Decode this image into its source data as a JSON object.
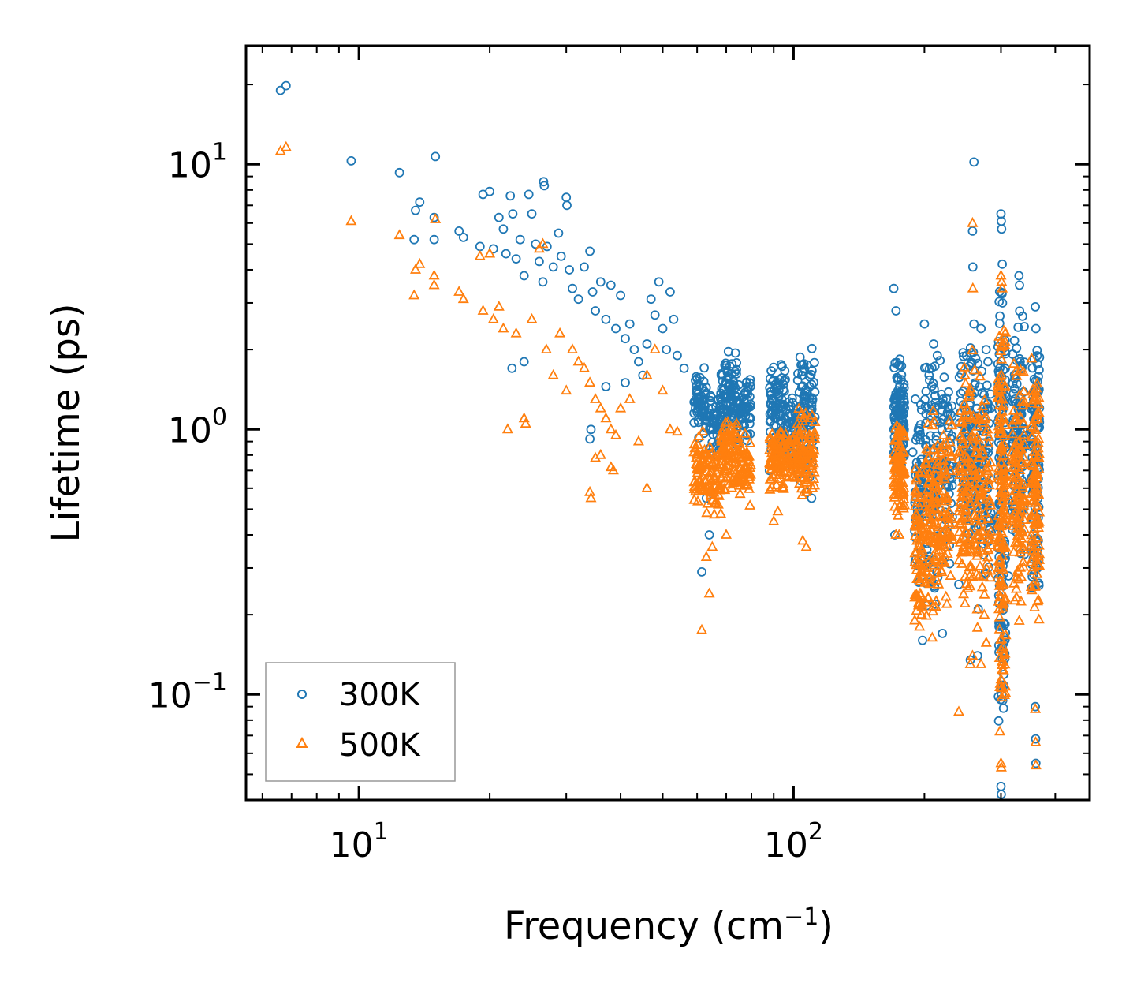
{
  "chart_data": {
    "type": "scatter",
    "xscale": "log",
    "yscale": "log",
    "xlim": [
      5.5,
      480
    ],
    "ylim": [
      0.04,
      28
    ],
    "xlabel": "Frequency (cm",
    "xlabel_sup": "−1",
    "xlabel_tail": ")",
    "ylabel": "Lifetime (ps)",
    "x_ticks": [
      {
        "value": 10,
        "base": "10",
        "exp": "1"
      },
      {
        "value": 100,
        "base": "10",
        "exp": "2"
      }
    ],
    "y_ticks": [
      {
        "value": 0.1,
        "base": "10",
        "exp": "−1"
      },
      {
        "value": 1,
        "base": "10",
        "exp": "0"
      },
      {
        "value": 10,
        "base": "10",
        "exp": "1"
      }
    ],
    "legend_position": "lower-left",
    "series": [
      {
        "name": "300K",
        "marker": "circle",
        "color": "#1f77b4",
        "points": [
          [
            6.6,
            19.0
          ],
          [
            6.8,
            19.8
          ],
          [
            9.6,
            10.3
          ],
          [
            12.4,
            9.3
          ],
          [
            13.5,
            6.7
          ],
          [
            13.8,
            7.2
          ],
          [
            13.4,
            5.2
          ],
          [
            15.0,
            10.7
          ],
          [
            14.9,
            6.3
          ],
          [
            14.9,
            5.2
          ],
          [
            17.0,
            5.6
          ],
          [
            17.4,
            5.3
          ],
          [
            19.0,
            4.9
          ],
          [
            19.3,
            7.7
          ],
          [
            20.0,
            7.9
          ],
          [
            20.4,
            4.8
          ],
          [
            21.0,
            6.3
          ],
          [
            21.5,
            5.7
          ],
          [
            21.8,
            4.6
          ],
          [
            22.3,
            7.6
          ],
          [
            22.6,
            6.5
          ],
          [
            23.0,
            4.4
          ],
          [
            23.5,
            5.2
          ],
          [
            24.0,
            3.8
          ],
          [
            24.6,
            7.7
          ],
          [
            25.0,
            6.5
          ],
          [
            25.5,
            5.0
          ],
          [
            26.0,
            4.3
          ],
          [
            26.5,
            3.6
          ],
          [
            26.6,
            8.6
          ],
          [
            26.7,
            8.3
          ],
          [
            27.1,
            4.9
          ],
          [
            28.0,
            4.1
          ],
          [
            28.8,
            5.5
          ],
          [
            29.2,
            4.5
          ],
          [
            30.0,
            7.5
          ],
          [
            30.1,
            7.0
          ],
          [
            30.5,
            4.0
          ],
          [
            31.0,
            3.4
          ],
          [
            32.0,
            3.1
          ],
          [
            33.0,
            4.1
          ],
          [
            34.0,
            4.7
          ],
          [
            34.5,
            3.3
          ],
          [
            35.0,
            2.8
          ],
          [
            36.0,
            3.6
          ],
          [
            37.0,
            2.6
          ],
          [
            38.0,
            3.5
          ],
          [
            39.0,
            2.4
          ],
          [
            40.0,
            3.2
          ],
          [
            41.0,
            2.2
          ],
          [
            42.0,
            2.5
          ],
          [
            43.0,
            2.0
          ],
          [
            44.0,
            1.8
          ],
          [
            45.0,
            1.6
          ],
          [
            46.0,
            2.1
          ],
          [
            47.0,
            3.1
          ],
          [
            48.0,
            2.7
          ],
          [
            49.0,
            3.6
          ],
          [
            50.0,
            2.4
          ],
          [
            51.0,
            2.0
          ],
          [
            52.0,
            3.3
          ],
          [
            53.0,
            2.6
          ],
          [
            54.0,
            1.9
          ],
          [
            56.0,
            1.7
          ],
          [
            22.5,
            1.7
          ],
          [
            24.0,
            1.8
          ],
          [
            34.0,
            0.92
          ],
          [
            34.2,
            1.0
          ],
          [
            37.0,
            1.45
          ],
          [
            41.0,
            1.5
          ],
          [
            61.5,
            0.29
          ],
          [
            64.0,
            0.4
          ],
          [
            63.0,
            0.55
          ],
          [
            260.0,
            10.2
          ],
          [
            258.0,
            5.6
          ],
          [
            258.5,
            4.1
          ],
          [
            170.0,
            3.4
          ],
          [
            172.0,
            2.8
          ],
          [
            200.0,
            2.5
          ],
          [
            205.0,
            1.6
          ],
          [
            210.0,
            2.1
          ],
          [
            260.0,
            2.5
          ],
          [
            270.0,
            2.4
          ],
          [
            280.0,
            1.8
          ],
          [
            300.0,
            6.5
          ],
          [
            300.5,
            6.1
          ],
          [
            301.0,
            5.7
          ],
          [
            302.0,
            4.2
          ],
          [
            330.0,
            3.8
          ],
          [
            331.0,
            3.5
          ],
          [
            360.0,
            2.9
          ],
          [
            361.0,
            2.4
          ],
          [
            300.0,
            0.045
          ],
          [
            300.5,
            0.042
          ],
          [
            360.0,
            0.09
          ],
          [
            360.5,
            0.068
          ],
          [
            361.0,
            0.055
          ],
          [
            255.0,
            0.135
          ],
          [
            265.0,
            0.14
          ],
          [
            220.0,
            0.17
          ],
          [
            198.0,
            0.16
          ],
          [
            240.0,
            0.26
          ],
          [
            305.0,
            0.36
          ],
          [
            312.0,
            0.28
          ],
          [
            266.0,
            0.21
          ],
          [
            290.0,
            0.45
          ],
          [
            171.0,
            0.4
          ],
          [
            188.0,
            0.82
          ],
          [
            192.0,
            0.75
          ],
          [
            107.0,
            0.58
          ],
          [
            110.0,
            0.55
          ],
          [
            88.0,
            0.7
          ]
        ],
        "bands": [
          {
            "x": [
              59,
              63
            ],
            "y": [
              0.85,
              1.85
            ],
            "n": 60
          },
          {
            "x": [
              63,
              68
            ],
            "y": [
              0.75,
              1.5
            ],
            "n": 55
          },
          {
            "x": [
              68,
              74
            ],
            "y": [
              0.9,
              2.0
            ],
            "n": 90
          },
          {
            "x": [
              74,
              80
            ],
            "y": [
              0.85,
              1.7
            ],
            "n": 60
          },
          {
            "x": [
              88,
              96
            ],
            "y": [
              0.75,
              1.9
            ],
            "n": 85
          },
          {
            "x": [
              96,
              102
            ],
            "y": [
              0.7,
              1.4
            ],
            "n": 45
          },
          {
            "x": [
              102,
              112
            ],
            "y": [
              0.6,
              2.15
            ],
            "n": 100
          },
          {
            "x": [
              170,
              180
            ],
            "y": [
              0.65,
              2.0
            ],
            "n": 110
          },
          {
            "x": [
              190,
              198
            ],
            "y": [
              0.25,
              1.5
            ],
            "n": 60
          },
          {
            "x": [
              200,
              215
            ],
            "y": [
              0.2,
              2.3
            ],
            "n": 90
          },
          {
            "x": [
              215,
              232
            ],
            "y": [
              0.25,
              1.9
            ],
            "n": 75
          },
          {
            "x": [
              240,
              262
            ],
            "y": [
              0.3,
              2.2
            ],
            "n": 110
          },
          {
            "x": [
              262,
              285
            ],
            "y": [
              0.25,
              2.4
            ],
            "n": 90
          },
          {
            "x": [
              295,
              308
            ],
            "y": [
              0.06,
              4.3
            ],
            "n": 150
          },
          {
            "x": [
              318,
              340
            ],
            "y": [
              0.3,
              3.1
            ],
            "n": 120
          },
          {
            "x": [
              352,
              368
            ],
            "y": [
              0.2,
              2.6
            ],
            "n": 110
          }
        ]
      },
      {
        "name": "500K",
        "marker": "triangle",
        "color": "#ff7f0e",
        "points": [
          [
            6.6,
            11.2
          ],
          [
            6.8,
            11.6
          ],
          [
            9.6,
            6.1
          ],
          [
            12.4,
            5.4
          ],
          [
            13.5,
            4.0
          ],
          [
            13.8,
            4.2
          ],
          [
            13.4,
            3.2
          ],
          [
            15.0,
            6.2
          ],
          [
            14.9,
            3.8
          ],
          [
            14.9,
            3.5
          ],
          [
            17.0,
            3.3
          ],
          [
            17.4,
            3.1
          ],
          [
            19.0,
            4.5
          ],
          [
            19.3,
            2.8
          ],
          [
            20.0,
            4.6
          ],
          [
            20.4,
            2.6
          ],
          [
            21.0,
            2.9
          ],
          [
            21.5,
            2.4
          ],
          [
            22.0,
            1.0
          ],
          [
            23.0,
            2.3
          ],
          [
            24.0,
            1.1
          ],
          [
            24.2,
            1.05
          ],
          [
            25.0,
            2.6
          ],
          [
            26.0,
            4.8
          ],
          [
            26.5,
            5.0
          ],
          [
            27.0,
            2.0
          ],
          [
            28.0,
            1.6
          ],
          [
            29.0,
            2.3
          ],
          [
            30.0,
            1.4
          ],
          [
            31.0,
            2.0
          ],
          [
            32.0,
            1.8
          ],
          [
            33.0,
            1.7
          ],
          [
            34.0,
            1.5
          ],
          [
            35.0,
            1.3
          ],
          [
            36.0,
            1.2
          ],
          [
            37.0,
            1.1
          ],
          [
            38.0,
            1.0
          ],
          [
            39.0,
            0.95
          ],
          [
            40.0,
            1.2
          ],
          [
            42.0,
            1.3
          ],
          [
            44.0,
            0.9
          ],
          [
            46.0,
            1.6
          ],
          [
            48.0,
            2.0
          ],
          [
            50.0,
            1.4
          ],
          [
            52.0,
            1.0
          ],
          [
            54.0,
            0.98
          ],
          [
            34.0,
            0.58
          ],
          [
            34.2,
            0.55
          ],
          [
            38.0,
            0.72
          ],
          [
            38.5,
            0.7
          ],
          [
            46.0,
            0.6
          ],
          [
            35.0,
            0.78
          ],
          [
            36.0,
            0.8
          ],
          [
            61.5,
            0.175
          ],
          [
            64.0,
            0.24
          ],
          [
            63.0,
            0.33
          ],
          [
            65.0,
            0.36
          ],
          [
            70.0,
            0.4
          ],
          [
            68.0,
            0.48
          ],
          [
            90.0,
            0.45
          ],
          [
            92.0,
            0.49
          ],
          [
            105.0,
            0.38
          ],
          [
            107.0,
            0.36
          ],
          [
            258.0,
            6.0
          ],
          [
            258.5,
            3.4
          ],
          [
            172.0,
            0.4
          ],
          [
            175.0,
            0.4
          ],
          [
            300.0,
            3.8
          ],
          [
            301.0,
            3.6
          ],
          [
            302.0,
            3.4
          ],
          [
            360.0,
            0.088
          ],
          [
            360.5,
            0.066
          ],
          [
            361.0,
            0.054
          ],
          [
            300.0,
            0.055
          ],
          [
            300.5,
            0.053
          ],
          [
            240.0,
            0.086
          ],
          [
            255.0,
            0.13
          ],
          [
            258.0,
            0.14
          ],
          [
            270.0,
            0.13
          ],
          [
            190.0,
            0.19
          ],
          [
            195.0,
            0.18
          ]
        ],
        "bands": [
          {
            "x": [
              59,
              63
            ],
            "y": [
              0.5,
              1.05
            ],
            "n": 55
          },
          {
            "x": [
              63,
              68
            ],
            "y": [
              0.45,
              0.9
            ],
            "n": 50
          },
          {
            "x": [
              68,
              74
            ],
            "y": [
              0.55,
              1.15
            ],
            "n": 85
          },
          {
            "x": [
              74,
              80
            ],
            "y": [
              0.5,
              1.0
            ],
            "n": 55
          },
          {
            "x": [
              88,
              96
            ],
            "y": [
              0.55,
              1.1
            ],
            "n": 80
          },
          {
            "x": [
              96,
              102
            ],
            "y": [
              0.6,
              1.0
            ],
            "n": 40
          },
          {
            "x": [
              102,
              112
            ],
            "y": [
              0.52,
              1.25
            ],
            "n": 95
          },
          {
            "x": [
              170,
              180
            ],
            "y": [
              0.45,
              1.05
            ],
            "n": 100
          },
          {
            "x": [
              190,
              198
            ],
            "y": [
              0.18,
              0.85
            ],
            "n": 70
          },
          {
            "x": [
              200,
              215
            ],
            "y": [
              0.16,
              1.25
            ],
            "n": 95
          },
          {
            "x": [
              215,
              232
            ],
            "y": [
              0.2,
              1.4
            ],
            "n": 80
          },
          {
            "x": [
              240,
              262
            ],
            "y": [
              0.18,
              2.1
            ],
            "n": 120
          },
          {
            "x": [
              262,
              285
            ],
            "y": [
              0.15,
              1.8
            ],
            "n": 95
          },
          {
            "x": [
              295,
              308
            ],
            "y": [
              0.055,
              3.2
            ],
            "n": 160
          },
          {
            "x": [
              318,
              340
            ],
            "y": [
              0.18,
              2.0
            ],
            "n": 120
          },
          {
            "x": [
              352,
              368
            ],
            "y": [
              0.18,
              1.9
            ],
            "n": 110
          }
        ]
      }
    ]
  }
}
